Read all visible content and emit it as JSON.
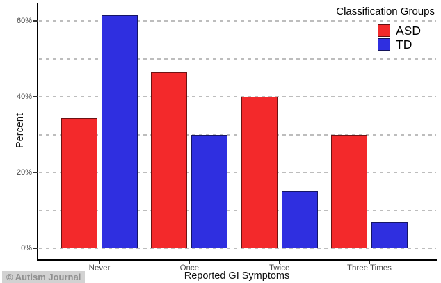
{
  "chart_data": {
    "type": "bar",
    "title": "",
    "categories": [
      "Never",
      "Once",
      "Twice",
      "Three Times"
    ],
    "series": [
      {
        "name": "ASD",
        "color": "#f3292b",
        "values": [
          34.3,
          46.5,
          40,
          30
        ]
      },
      {
        "name": "TD",
        "color": "#2f2fe0",
        "values": [
          61.4,
          30,
          15,
          7
        ]
      }
    ],
    "xlabel": "Reported GI Symptoms",
    "ylabel": "Percent",
    "ylim": [
      0,
      65
    ],
    "grid_step": 10,
    "label_step": 20,
    "ytick_suffix": "%",
    "grid_style": "dashed horizontal, light gray",
    "legend_title": "Classification Groups",
    "legend_position": "top-right",
    "background": "#ffffff",
    "axis_color": "#000000"
  },
  "watermark": {
    "text": "© Autism Journal"
  }
}
